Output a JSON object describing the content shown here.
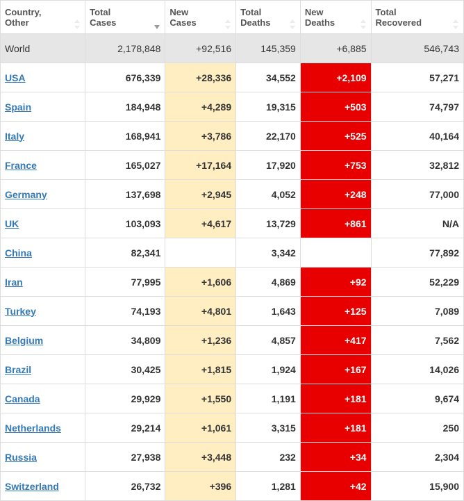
{
  "table": {
    "columns": [
      {
        "key": "country",
        "label_line1": "Country,",
        "label_line2": "Other",
        "sortable": true,
        "active": false
      },
      {
        "key": "total_cases",
        "label_line1": "Total",
        "label_line2": "Cases",
        "sortable": true,
        "active": true
      },
      {
        "key": "new_cases",
        "label_line1": "New",
        "label_line2": "Cases",
        "sortable": true,
        "active": false
      },
      {
        "key": "total_deaths",
        "label_line1": "Total",
        "label_line2": "Deaths",
        "sortable": true,
        "active": false
      },
      {
        "key": "new_deaths",
        "label_line1": "New",
        "label_line2": "Deaths",
        "sortable": true,
        "active": false
      },
      {
        "key": "total_recovered",
        "label_line1": "Total",
        "label_line2": "Recovered",
        "sortable": true,
        "active": false
      }
    ],
    "world_row": {
      "country": "World",
      "total_cases": "2,178,848",
      "new_cases": "+92,516",
      "total_deaths": "145,359",
      "new_deaths": "+6,885",
      "total_recovered": "546,743"
    },
    "rows": [
      {
        "country": "USA",
        "link": true,
        "total_cases": "676,339",
        "new_cases": "+28,336",
        "total_deaths": "34,552",
        "new_deaths": "+2,109",
        "total_recovered": "57,271"
      },
      {
        "country": "Spain",
        "link": true,
        "total_cases": "184,948",
        "new_cases": "+4,289",
        "total_deaths": "19,315",
        "new_deaths": "+503",
        "total_recovered": "74,797"
      },
      {
        "country": "Italy",
        "link": true,
        "total_cases": "168,941",
        "new_cases": "+3,786",
        "total_deaths": "22,170",
        "new_deaths": "+525",
        "total_recovered": "40,164"
      },
      {
        "country": "France",
        "link": true,
        "total_cases": "165,027",
        "new_cases": "+17,164",
        "total_deaths": "17,920",
        "new_deaths": "+753",
        "total_recovered": "32,812"
      },
      {
        "country": "Germany",
        "link": true,
        "total_cases": "137,698",
        "new_cases": "+2,945",
        "total_deaths": "4,052",
        "new_deaths": "+248",
        "total_recovered": "77,000"
      },
      {
        "country": "UK",
        "link": true,
        "total_cases": "103,093",
        "new_cases": "+4,617",
        "total_deaths": "13,729",
        "new_deaths": "+861",
        "total_recovered": "N/A"
      },
      {
        "country": "China",
        "link": true,
        "total_cases": "82,341",
        "new_cases": "",
        "total_deaths": "3,342",
        "new_deaths": "",
        "total_recovered": "77,892"
      },
      {
        "country": "Iran",
        "link": true,
        "total_cases": "77,995",
        "new_cases": "+1,606",
        "total_deaths": "4,869",
        "new_deaths": "+92",
        "total_recovered": "52,229"
      },
      {
        "country": "Turkey",
        "link": true,
        "total_cases": "74,193",
        "new_cases": "+4,801",
        "total_deaths": "1,643",
        "new_deaths": "+125",
        "total_recovered": "7,089"
      },
      {
        "country": "Belgium",
        "link": true,
        "total_cases": "34,809",
        "new_cases": "+1,236",
        "total_deaths": "4,857",
        "new_deaths": "+417",
        "total_recovered": "7,562"
      },
      {
        "country": "Brazil",
        "link": true,
        "total_cases": "30,425",
        "new_cases": "+1,815",
        "total_deaths": "1,924",
        "new_deaths": "+167",
        "total_recovered": "14,026"
      },
      {
        "country": "Canada",
        "link": true,
        "total_cases": "29,929",
        "new_cases": "+1,550",
        "total_deaths": "1,191",
        "new_deaths": "+181",
        "total_recovered": "9,674"
      },
      {
        "country": "Netherlands",
        "link": true,
        "total_cases": "29,214",
        "new_cases": "+1,061",
        "total_deaths": "3,315",
        "new_deaths": "+181",
        "total_recovered": "250"
      },
      {
        "country": "Russia",
        "link": true,
        "total_cases": "27,938",
        "new_cases": "+3,448",
        "total_deaths": "232",
        "new_deaths": "+34",
        "total_recovered": "2,304"
      },
      {
        "country": "Switzerland",
        "link": true,
        "total_cases": "26,732",
        "new_cases": "+396",
        "total_deaths": "1,281",
        "new_deaths": "+42",
        "total_recovered": "15,900"
      }
    ],
    "colors": {
      "new_cases_bg": "#ffeec2",
      "new_deaths_bg": "#e80000",
      "new_deaths_fg": "#ffffff",
      "world_bg": "#e6e6e6",
      "border": "#dddddd",
      "link": "#337ab7"
    }
  }
}
